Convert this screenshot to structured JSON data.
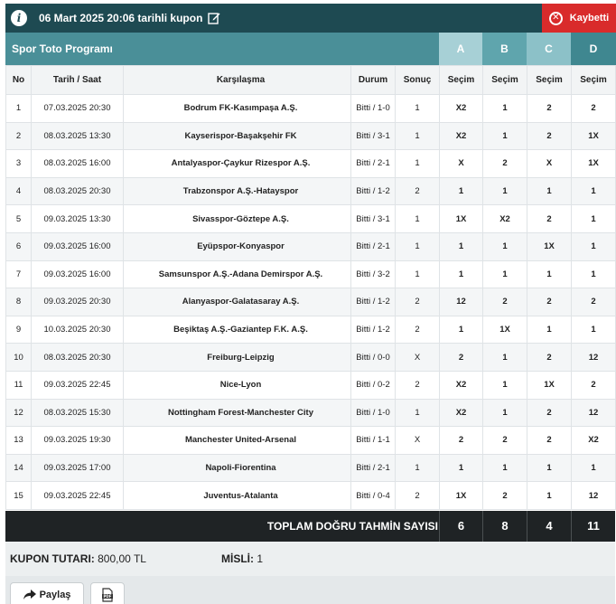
{
  "header": {
    "info_icon": "i",
    "coupon_title": "06 Mart 2025 20:06 tarihli kupon",
    "status": "Kaybetti",
    "status_icon": "x-circle-icon",
    "status_color": "#d92b2b",
    "bar_color": "#1e4a52"
  },
  "program": {
    "title": "Spor Toto Programı",
    "columns": [
      "A",
      "B",
      "C",
      "D"
    ]
  },
  "table": {
    "headers": {
      "no": "No",
      "datetime": "Tarih / Saat",
      "match": "Karşılaşma",
      "status": "Durum",
      "result": "Sonuç",
      "pick": "Seçim"
    },
    "rows": [
      {
        "no": "1",
        "date": "07.03.2025 20:30",
        "match": "Bodrum FK-Kasımpaşa A.Ş.",
        "status": "Bitti / 1-0",
        "result": "1",
        "picks": [
          {
            "v": "X2",
            "ok": false
          },
          {
            "v": "1",
            "ok": true
          },
          {
            "v": "2",
            "ok": false
          },
          {
            "v": "2",
            "ok": false
          }
        ]
      },
      {
        "no": "2",
        "date": "08.03.2025 13:30",
        "match": "Kayserispor-Başakşehir FK",
        "status": "Bitti / 3-1",
        "result": "1",
        "picks": [
          {
            "v": "X2",
            "ok": false
          },
          {
            "v": "1",
            "ok": true
          },
          {
            "v": "2",
            "ok": false
          },
          {
            "v": "1X",
            "ok": true
          }
        ]
      },
      {
        "no": "3",
        "date": "08.03.2025 16:00",
        "match": "Antalyaspor-Çaykur Rizespor A.Ş.",
        "status": "Bitti / 2-1",
        "result": "1",
        "picks": [
          {
            "v": "X",
            "ok": false
          },
          {
            "v": "2",
            "ok": false
          },
          {
            "v": "X",
            "ok": false
          },
          {
            "v": "1X",
            "ok": true
          }
        ]
      },
      {
        "no": "4",
        "date": "08.03.2025 20:30",
        "match": "Trabzonspor A.Ş.-Hatayspor",
        "status": "Bitti / 1-2",
        "result": "2",
        "picks": [
          {
            "v": "1",
            "ok": false
          },
          {
            "v": "1",
            "ok": false
          },
          {
            "v": "1",
            "ok": false
          },
          {
            "v": "1",
            "ok": false
          }
        ]
      },
      {
        "no": "5",
        "date": "09.03.2025 13:30",
        "match": "Sivasspor-Göztepe A.Ş.",
        "status": "Bitti / 3-1",
        "result": "1",
        "picks": [
          {
            "v": "1X",
            "ok": true
          },
          {
            "v": "X2",
            "ok": false
          },
          {
            "v": "2",
            "ok": false
          },
          {
            "v": "1",
            "ok": true
          }
        ]
      },
      {
        "no": "6",
        "date": "09.03.2025 16:00",
        "match": "Eyüpspor-Konyaspor",
        "status": "Bitti / 2-1",
        "result": "1",
        "picks": [
          {
            "v": "1",
            "ok": true
          },
          {
            "v": "1",
            "ok": true
          },
          {
            "v": "1X",
            "ok": true
          },
          {
            "v": "1",
            "ok": true
          }
        ]
      },
      {
        "no": "7",
        "date": "09.03.2025 16:00",
        "match": "Samsunspor A.Ş.-Adana Demirspor A.Ş.",
        "status": "Bitti / 3-2",
        "result": "1",
        "picks": [
          {
            "v": "1",
            "ok": true
          },
          {
            "v": "1",
            "ok": true
          },
          {
            "v": "1",
            "ok": true
          },
          {
            "v": "1",
            "ok": true
          }
        ]
      },
      {
        "no": "8",
        "date": "09.03.2025 20:30",
        "match": "Alanyaspor-Galatasaray A.Ş.",
        "status": "Bitti / 1-2",
        "result": "2",
        "picks": [
          {
            "v": "12",
            "ok": true
          },
          {
            "v": "2",
            "ok": true
          },
          {
            "v": "2",
            "ok": true
          },
          {
            "v": "2",
            "ok": true
          }
        ]
      },
      {
        "no": "9",
        "date": "10.03.2025 20:30",
        "match": "Beşiktaş A.Ş.-Gaziantep F.K. A.Ş.",
        "status": "Bitti / 1-2",
        "result": "2",
        "picks": [
          {
            "v": "1",
            "ok": false
          },
          {
            "v": "1X",
            "ok": false
          },
          {
            "v": "1",
            "ok": false
          },
          {
            "v": "1",
            "ok": false
          }
        ]
      },
      {
        "no": "10",
        "date": "08.03.2025 20:30",
        "match": "Freiburg-Leipzig",
        "status": "Bitti / 0-0",
        "result": "X",
        "picks": [
          {
            "v": "2",
            "ok": false
          },
          {
            "v": "1",
            "ok": false
          },
          {
            "v": "2",
            "ok": false
          },
          {
            "v": "12",
            "ok": false
          }
        ]
      },
      {
        "no": "11",
        "date": "09.03.2025 22:45",
        "match": "Nice-Lyon",
        "status": "Bitti / 0-2",
        "result": "2",
        "picks": [
          {
            "v": "X2",
            "ok": true
          },
          {
            "v": "1",
            "ok": false
          },
          {
            "v": "1X",
            "ok": false
          },
          {
            "v": "2",
            "ok": true
          }
        ]
      },
      {
        "no": "12",
        "date": "08.03.2025 15:30",
        "match": "Nottingham Forest-Manchester City",
        "status": "Bitti / 1-0",
        "result": "1",
        "picks": [
          {
            "v": "X2",
            "ok": false
          },
          {
            "v": "1",
            "ok": true
          },
          {
            "v": "2",
            "ok": false
          },
          {
            "v": "12",
            "ok": true
          }
        ]
      },
      {
        "no": "13",
        "date": "09.03.2025 19:30",
        "match": "Manchester United-Arsenal",
        "status": "Bitti / 1-1",
        "result": "X",
        "picks": [
          {
            "v": "2",
            "ok": false
          },
          {
            "v": "2",
            "ok": false
          },
          {
            "v": "2",
            "ok": false
          },
          {
            "v": "X2",
            "ok": true
          }
        ]
      },
      {
        "no": "14",
        "date": "09.03.2025 17:00",
        "match": "Napoli-Fiorentina",
        "status": "Bitti / 2-1",
        "result": "1",
        "picks": [
          {
            "v": "1",
            "ok": true
          },
          {
            "v": "1",
            "ok": true
          },
          {
            "v": "1",
            "ok": true
          },
          {
            "v": "1",
            "ok": true
          }
        ]
      },
      {
        "no": "15",
        "date": "09.03.2025 22:45",
        "match": "Juventus-Atalanta",
        "status": "Bitti / 0-4",
        "result": "2",
        "picks": [
          {
            "v": "1X",
            "ok": false
          },
          {
            "v": "2",
            "ok": true
          },
          {
            "v": "1",
            "ok": false
          },
          {
            "v": "12",
            "ok": true
          }
        ]
      }
    ]
  },
  "totals": {
    "label": "TOPLAM DOĞRU TAHMİN SAYISI",
    "values": [
      "6",
      "8",
      "4",
      "11"
    ]
  },
  "summary": {
    "amount_label": "KUPON TUTARI:",
    "amount_value": "800,00 TL",
    "multiplier_label": "MİSLİ:",
    "multiplier_value": "1"
  },
  "footer": {
    "share_label": "Paylaş",
    "share_icon": "share-arrow-icon",
    "pdf_icon": "pdf-icon"
  },
  "colors": {
    "correct": "#3a9a2a",
    "wrong": "#d93030",
    "col_a": "#a7d0d6",
    "col_b": "#5fa5ad",
    "col_c": "#8cc1c8",
    "col_d": "#3f8790"
  }
}
